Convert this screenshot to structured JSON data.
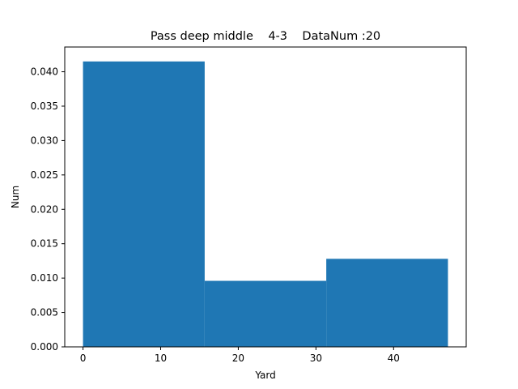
{
  "chart_data": {
    "type": "bar",
    "title": "Pass deep middle    4-3    DataNum :20",
    "xlabel": "Yard",
    "ylabel": "Num",
    "bins": [
      {
        "x0": 0,
        "x1": 15.67,
        "value": 0.0415
      },
      {
        "x0": 15.67,
        "x1": 31.33,
        "value": 0.0096
      },
      {
        "x0": 31.33,
        "x1": 47,
        "value": 0.0128
      }
    ],
    "xlim": [
      -2.35,
      49.35
    ],
    "ylim": [
      0,
      0.0436
    ],
    "xticks": [
      0,
      10,
      20,
      30,
      40
    ],
    "xtick_labels": [
      "0",
      "10",
      "20",
      "30",
      "40"
    ],
    "yticks": [
      0,
      0.005,
      0.01,
      0.015,
      0.02,
      0.025,
      0.03,
      0.035,
      0.04
    ],
    "ytick_labels": [
      "0.000",
      "0.005",
      "0.010",
      "0.015",
      "0.020",
      "0.025",
      "0.030",
      "0.035",
      "0.040"
    ],
    "bar_color": "#1f77b4",
    "grid": false,
    "legend": "none"
  }
}
